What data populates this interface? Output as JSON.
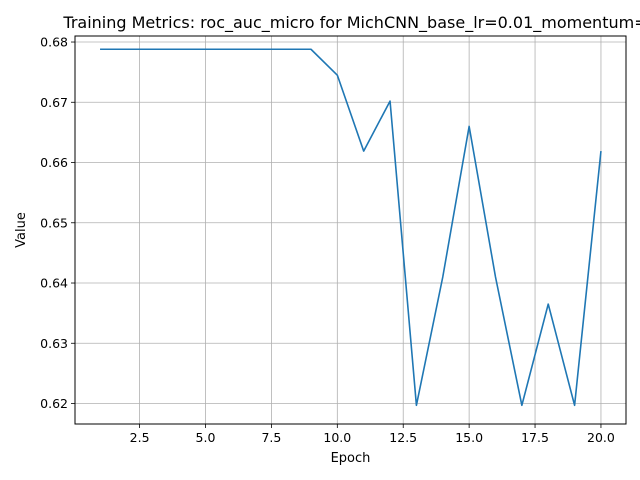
{
  "chart_data": {
    "type": "line",
    "title": "Training Metrics: roc_auc_micro for MichCNN_base_lr=0.01_momentum=",
    "xlabel": "Epoch",
    "ylabel": "Value",
    "xlim": [
      0.05,
      20.95
    ],
    "ylim": [
      0.6166,
      0.681
    ],
    "x_ticks": [
      2.5,
      5.0,
      7.5,
      10.0,
      12.5,
      15.0,
      17.5,
      20.0
    ],
    "x_tick_labels": [
      "2.5",
      "5.0",
      "7.5",
      "10.0",
      "12.5",
      "15.0",
      "17.5",
      "20.0"
    ],
    "y_ticks": [
      0.62,
      0.63,
      0.64,
      0.65,
      0.66,
      0.67,
      0.68
    ],
    "y_tick_labels": [
      "0.62",
      "0.63",
      "0.64",
      "0.65",
      "0.66",
      "0.67",
      "0.68"
    ],
    "grid": true,
    "legend": false,
    "series": [
      {
        "color": "#1f77b4",
        "x": [
          1,
          2,
          3,
          4,
          5,
          6,
          7,
          8,
          9,
          10,
          11,
          12,
          13,
          14,
          15,
          16,
          17,
          18,
          19,
          20
        ],
        "y": [
          0.6788,
          0.6788,
          0.6788,
          0.6788,
          0.6788,
          0.6788,
          0.6788,
          0.6788,
          0.6788,
          0.6745,
          0.6619,
          0.6702,
          0.6197,
          0.641,
          0.666,
          0.641,
          0.6197,
          0.6365,
          0.6197,
          0.6619
        ]
      }
    ]
  }
}
